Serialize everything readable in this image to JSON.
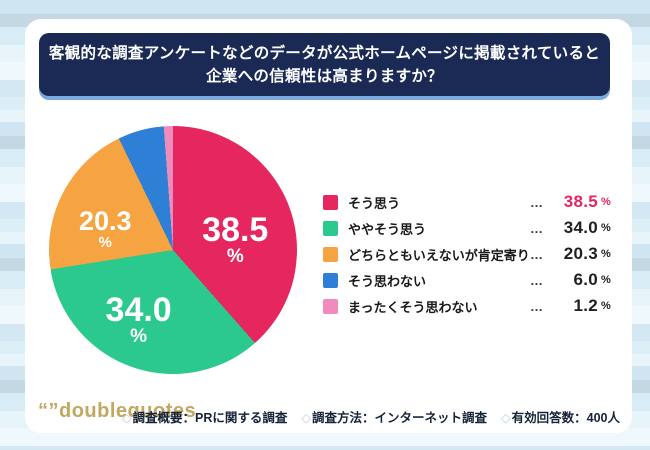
{
  "header": {
    "line1": "客観的な調査アンケートなどのデータが公式ホームページに掲載されていると",
    "line2": "企業への信頼性は高まりますか？"
  },
  "chart_data": {
    "type": "pie",
    "title": "客観的な調査アンケートなどのデータが公式ホームページに掲載されていると企業への信頼性は高まりますか？",
    "categories": [
      "そう思う",
      "ややそう思う",
      "どちらともいえないが肯定寄り",
      "そう思わない",
      "まったくそう思わない"
    ],
    "values": [
      38.5,
      34.0,
      20.3,
      6.0,
      1.2
    ],
    "unit": "%",
    "colors": [
      "#e6265f",
      "#2bc98e",
      "#f6a442",
      "#2e7fd6",
      "#ef8cbd"
    ],
    "start_angle_deg": 0,
    "direction": "clockwise",
    "slice_labels_shown": [
      true,
      true,
      true,
      false,
      false
    ],
    "legend_position": "right",
    "highlight_index": 0,
    "highlight_color": "#e6265f",
    "legend_separator": "…"
  },
  "footer": {
    "logo_text": "“”doublequotes",
    "items": [
      {
        "prefix": "◇",
        "text": "調査概要：PRに関する調査"
      },
      {
        "prefix": "◇",
        "text": "調査方法：インターネット調査"
      },
      {
        "prefix": "◇",
        "text": "有効回答数：400人"
      }
    ]
  }
}
